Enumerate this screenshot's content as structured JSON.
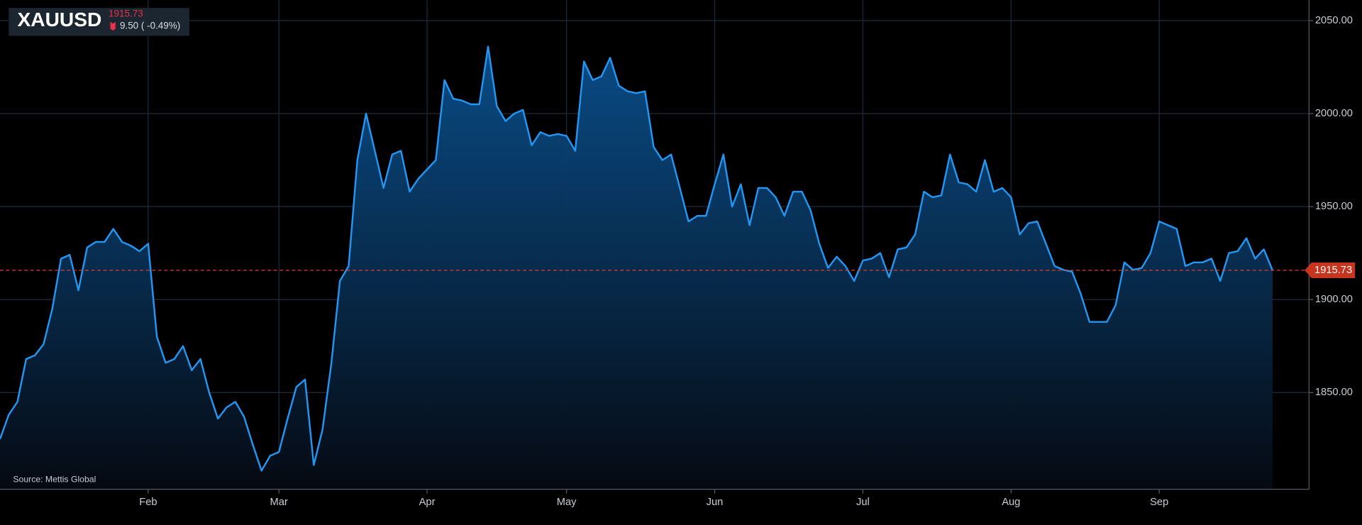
{
  "chart_data": {
    "type": "area",
    "title": "XAUUSD",
    "last_price": 1915.73,
    "change_label": "9.50 ( -0.49%)",
    "source": "Source: Mettis Global",
    "color": "#2196f3",
    "grid": true,
    "ylim": [
      1798,
      2061
    ],
    "yticks": [
      {
        "value": 1850,
        "label": "1850.00"
      },
      {
        "value": 1900,
        "label": "1900.00"
      },
      {
        "value": 1950,
        "label": "1950.00"
      },
      {
        "value": 2000,
        "label": "2000.00"
      },
      {
        "value": 2050,
        "label": "2050.00"
      }
    ],
    "categories": [
      null,
      null,
      null,
      null,
      null,
      null,
      null,
      null,
      null,
      null,
      null,
      null,
      null,
      null,
      null,
      null,
      null,
      "Feb",
      null,
      null,
      null,
      null,
      null,
      null,
      null,
      null,
      null,
      null,
      null,
      null,
      null,
      null,
      "Mar",
      null,
      null,
      null,
      null,
      null,
      null,
      null,
      null,
      null,
      null,
      null,
      null,
      null,
      null,
      null,
      null,
      "Apr",
      null,
      null,
      null,
      null,
      null,
      null,
      null,
      null,
      null,
      null,
      null,
      null,
      null,
      null,
      null,
      "May",
      null,
      null,
      null,
      null,
      null,
      null,
      null,
      null,
      null,
      null,
      null,
      null,
      null,
      null,
      null,
      null,
      "Jun",
      null,
      null,
      null,
      null,
      null,
      null,
      null,
      null,
      null,
      null,
      null,
      null,
      null,
      null,
      null,
      null,
      "Jul",
      null,
      null,
      null,
      null,
      null,
      null,
      null,
      null,
      null,
      null,
      null,
      null,
      null,
      null,
      null,
      null,
      "Aug",
      null,
      null,
      null,
      null,
      null,
      null,
      null,
      null,
      null,
      null,
      null,
      null,
      null,
      null,
      null,
      null,
      "Sep",
      null,
      null,
      null,
      null,
      null,
      null,
      null,
      null,
      null,
      null,
      null,
      null,
      null
    ],
    "values": [
      1825,
      1838,
      1845,
      1868,
      1870,
      1876,
      1895,
      1922,
      1924,
      1905,
      1928,
      1931,
      1931,
      1938,
      1931,
      1929,
      1926,
      1930,
      1880,
      1866,
      1868,
      1875,
      1862,
      1868,
      1850,
      1836,
      1842,
      1845,
      1837,
      1822,
      1808,
      1816,
      1818,
      1836,
      1853,
      1857,
      1811,
      1830,
      1865,
      1910,
      1918,
      1975,
      2000,
      1980,
      1960,
      1978,
      1980,
      1958,
      1965,
      1970,
      1975,
      2018,
      2008,
      2007,
      2005,
      2005,
      2036,
      2004,
      1996,
      2000,
      2002,
      1983,
      1990,
      1988,
      1989,
      1988,
      1980,
      2028,
      2018,
      2020,
      2030,
      2015,
      2012,
      2011,
      2012,
      1982,
      1975,
      1978,
      1960,
      1942,
      1945,
      1945,
      1962,
      1978,
      1950,
      1962,
      1940,
      1960,
      1960,
      1955,
      1945,
      1958,
      1958,
      1948,
      1930,
      1917,
      1923,
      1918,
      1910,
      1921,
      1922,
      1925,
      1912,
      1927,
      1928,
      1935,
      1958,
      1955,
      1956,
      1978,
      1963,
      1962,
      1958,
      1975,
      1958,
      1960,
      1955,
      1935,
      1941,
      1942,
      1930,
      1918,
      1916,
      1915,
      1903,
      1888,
      1888,
      1888,
      1897,
      1920,
      1916,
      1917,
      1925,
      1942,
      1940,
      1938,
      1918,
      1920,
      1920,
      1922,
      1910,
      1925,
      1926,
      1933,
      1922,
      1927,
      1915.73
    ]
  }
}
